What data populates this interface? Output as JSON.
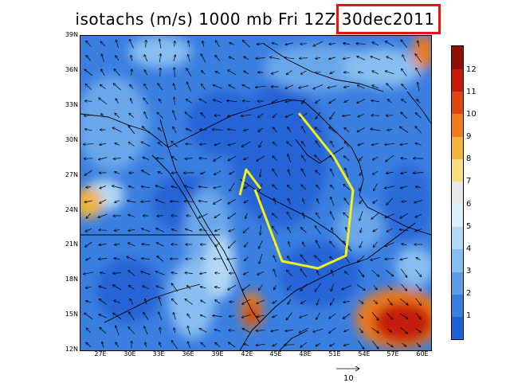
{
  "title": {
    "main": "isotachs (m/s) 1000 mb Fri 12Z",
    "date": "30dec2011"
  },
  "lat_labels": [
    "39N",
    "36N",
    "33N",
    "30N",
    "27N",
    "24N",
    "21N",
    "18N",
    "15N",
    "12N"
  ],
  "lon_labels": [
    "27E",
    "30E",
    "33E",
    "36E",
    "39E",
    "42E",
    "45E",
    "48E",
    "51E",
    "54E",
    "57E",
    "60E"
  ],
  "colorbar": {
    "labels": [
      "1",
      "2",
      "3",
      "4",
      "5",
      "6",
      "7",
      "8",
      "9",
      "10",
      "11",
      "12"
    ],
    "colors": [
      "#1f5fd4",
      "#3a7ee0",
      "#5c9de8",
      "#87bdf0",
      "#b2d8f6",
      "#dceffb",
      "#e8e8e8",
      "#f7df7e",
      "#f2b43c",
      "#ec7c1e",
      "#dd4410",
      "#c41a08",
      "#8f0e04"
    ]
  },
  "reference_vector": {
    "label": "10"
  },
  "colors": {
    "annotation_box": "#e0161a",
    "annotation_arrow": "#f2f21a"
  }
}
